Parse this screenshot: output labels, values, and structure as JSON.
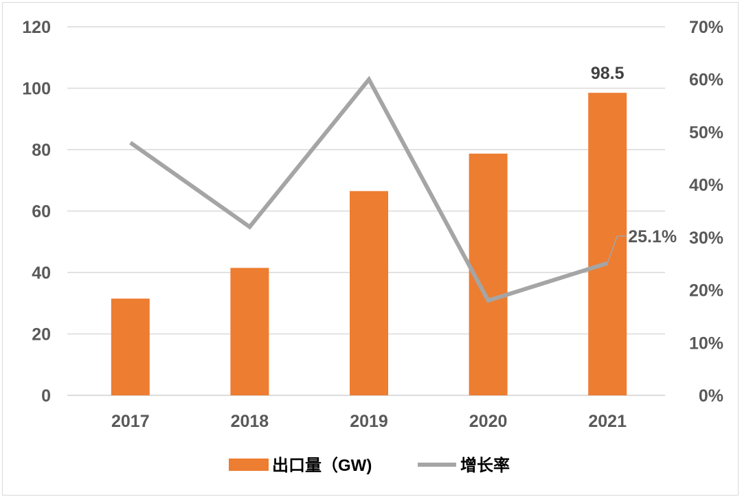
{
  "chart_data": {
    "type": "bar",
    "categories": [
      "2017",
      "2018",
      "2019",
      "2020",
      "2021"
    ],
    "series": [
      {
        "name": "出口量（GW)",
        "type": "bar",
        "axis": "left",
        "color": "#ED7D31",
        "values": [
          31.5,
          41.5,
          66.5,
          78.7,
          98.5
        ]
      },
      {
        "name": "增长率",
        "type": "line",
        "axis": "right",
        "color": "#A5A5A5",
        "values": [
          48,
          32,
          60,
          18,
          25.1
        ]
      }
    ],
    "left_axis": {
      "ylim": [
        0,
        120
      ],
      "ticks": [
        "0",
        "20",
        "40",
        "60",
        "80",
        "100",
        "120"
      ],
      "tick_values": [
        0,
        20,
        40,
        60,
        80,
        100,
        120
      ]
    },
    "right_axis": {
      "ylim": [
        0,
        70
      ],
      "ticks": [
        "0%",
        "10%",
        "20%",
        "30%",
        "40%",
        "50%",
        "60%",
        "70%"
      ],
      "tick_values": [
        0,
        10,
        20,
        30,
        40,
        50,
        60,
        70
      ]
    },
    "data_labels": [
      {
        "series": 0,
        "index": 4,
        "text": "98.5"
      },
      {
        "series": 1,
        "index": 4,
        "text": "25.1%"
      }
    ],
    "grid": true,
    "legend_position": "bottom",
    "title": "",
    "xlabel": "",
    "ylabel": ""
  }
}
